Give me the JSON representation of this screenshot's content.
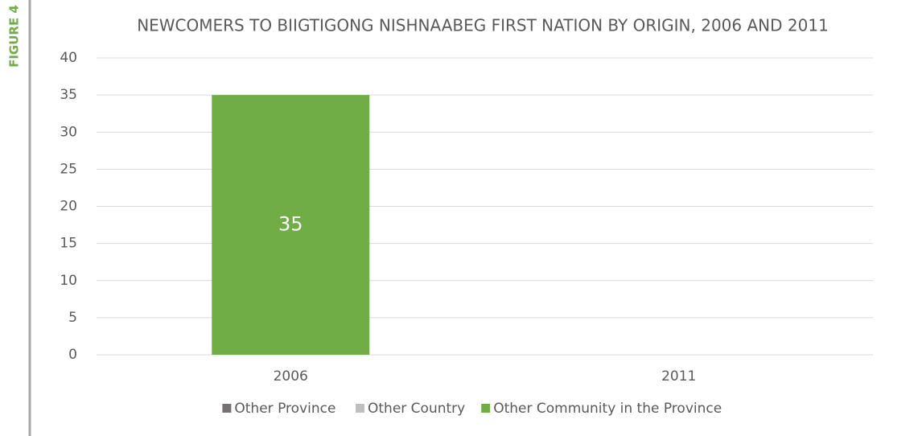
{
  "figure_label": "FIGURE 4",
  "chart_data": {
    "type": "stacked_bar",
    "title": "NEWCOMERS TO BIIGTIGONG NISHNAABEG FIRST NATION BY ORIGIN, 2006 AND 2011",
    "categories": [
      "2006",
      "2011"
    ],
    "series": [
      {
        "name": "Other Province",
        "color": "#767171",
        "values": [
          0,
          0
        ]
      },
      {
        "name": "Other Country",
        "color": "#bfbfbf",
        "values": [
          0,
          0
        ]
      },
      {
        "name": "Other Community in the Province",
        "color": "#70ad47",
        "values": [
          35,
          0
        ]
      }
    ],
    "ylim": [
      0,
      40
    ],
    "yticks": [
      0,
      5,
      10,
      15,
      20,
      25,
      30,
      35,
      40
    ],
    "grid": true,
    "legend": "bottom"
  }
}
